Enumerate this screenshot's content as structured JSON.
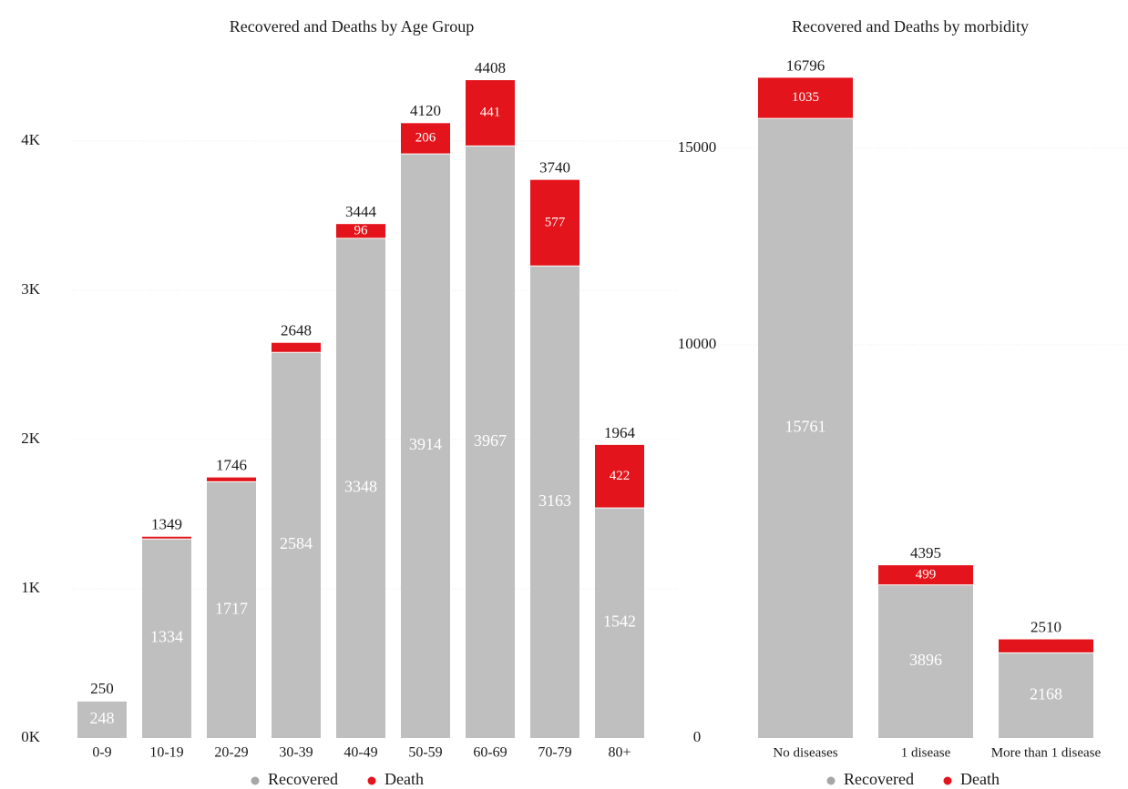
{
  "colors": {
    "recovered": "#bfbfbf",
    "death": "#e3141b",
    "grid": "#ebebeb",
    "text": "#1a1a1a",
    "inner_label": "#ffffff"
  },
  "chart_data": [
    {
      "type": "bar",
      "stacked": true,
      "title": "Recovered and Deaths by Age Group",
      "categories": [
        "0-9",
        "10-19",
        "20-29",
        "30-39",
        "40-49",
        "50-59",
        "60-69",
        "70-79",
        "80+"
      ],
      "series": [
        {
          "name": "Recovered",
          "values": [
            248,
            1334,
            1717,
            2584,
            3348,
            3914,
            3967,
            3163,
            1542
          ]
        },
        {
          "name": "Death",
          "values": [
            2,
            15,
            29,
            64,
            96,
            206,
            441,
            577,
            422
          ]
        }
      ],
      "recovered_labels": [
        "248",
        "1334",
        "1717",
        "2584",
        "3348",
        "3914",
        "3967",
        "3163",
        "1542"
      ],
      "death_labels": [
        "",
        "",
        "",
        "",
        "96",
        "206",
        "441",
        "577",
        "422"
      ],
      "totals": [
        250,
        1349,
        1746,
        2648,
        3444,
        4120,
        4408,
        3740,
        1964
      ],
      "total_labels": [
        "250",
        "1349",
        "1746",
        "2648",
        "3444",
        "4120",
        "4408",
        "3740",
        "1964"
      ],
      "y_ticks": [
        0,
        1000,
        2000,
        3000,
        4000
      ],
      "y_tick_labels": [
        "0K",
        "1K",
        "2K",
        "3K",
        "4K"
      ],
      "ylim": [
        0,
        4800
      ],
      "grid": true,
      "legend": [
        "Recovered",
        "Death"
      ],
      "legend_position": "bottom"
    },
    {
      "type": "bar",
      "stacked": true,
      "title": "Recovered and Deaths by morbidity",
      "categories": [
        "No diseases",
        "1 disease",
        "More than 1 disease"
      ],
      "series": [
        {
          "name": "Recovered",
          "values": [
            15761,
            3896,
            2168
          ]
        },
        {
          "name": "Death",
          "values": [
            1035,
            499,
            342
          ]
        }
      ],
      "recovered_labels": [
        "15761",
        "3896",
        "2168"
      ],
      "death_labels": [
        "1035",
        "499",
        ""
      ],
      "totals": [
        16796,
        4395,
        2510
      ],
      "total_labels": [
        "16796",
        "4395",
        "2510"
      ],
      "y_ticks": [
        0,
        10000,
        15000
      ],
      "y_tick_labels": [
        "0",
        "10000",
        "15000"
      ],
      "ylim": [
        0,
        18000
      ],
      "grid": true,
      "legend": [
        "Recovered",
        "Death"
      ],
      "legend_position": "bottom"
    }
  ]
}
